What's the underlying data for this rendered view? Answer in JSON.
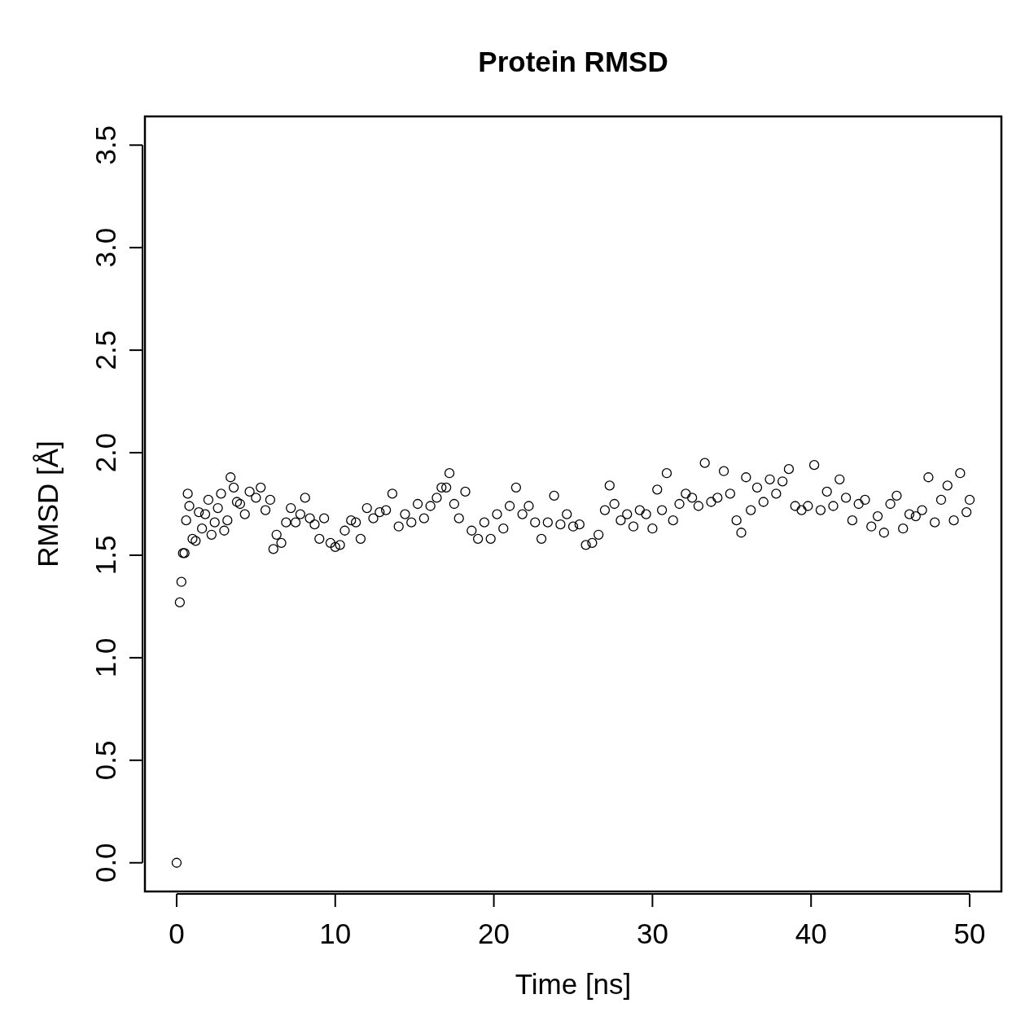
{
  "chart_data": {
    "type": "scatter",
    "title": "Protein RMSD",
    "xlabel": "Time [ns]",
    "ylabel": "RMSD [Å]",
    "marker": "circle",
    "xlim": [
      -2,
      52
    ],
    "ylim": [
      -0.14,
      3.64
    ],
    "xticks": [
      0,
      10,
      20,
      30,
      40,
      50
    ],
    "yticks": [
      {
        "value": 0,
        "label": "0.0"
      },
      0.5,
      {
        "value": 1,
        "label": "1.0"
      },
      1.5,
      {
        "value": 2,
        "label": "2.0"
      },
      2.5,
      {
        "value": 3,
        "label": "3.0"
      },
      3.5
    ],
    "series": [
      {
        "color": "#000000",
        "x": [
          0,
          0.2,
          0.3,
          0.4,
          0.5,
          0.6,
          0.7,
          0.8,
          1.0,
          1.2,
          1.4,
          1.6,
          1.8,
          2.0,
          2.2,
          2.4,
          2.6,
          2.8,
          3.0,
          3.2,
          3.4,
          3.6,
          3.8,
          4.0,
          4.3,
          4.6,
          5.0,
          5.3,
          5.6,
          5.9,
          6.1,
          6.3,
          6.6,
          6.9,
          7.2,
          7.5,
          7.8,
          8.1,
          8.4,
          8.7,
          9.0,
          9.3,
          9.7,
          10.0,
          10.3,
          10.6,
          11.0,
          11.3,
          11.6,
          12.0,
          12.4,
          12.8,
          13.2,
          13.6,
          14.0,
          14.4,
          14.8,
          15.2,
          15.6,
          16.0,
          16.4,
          16.7,
          17.0,
          17.2,
          17.5,
          17.8,
          18.2,
          18.6,
          19.0,
          19.4,
          19.8,
          20.2,
          20.6,
          21.0,
          21.4,
          21.8,
          22.2,
          22.6,
          23.0,
          23.4,
          23.8,
          24.2,
          24.6,
          25.0,
          25.4,
          25.8,
          26.2,
          26.6,
          27.0,
          27.3,
          27.6,
          28.0,
          28.4,
          28.8,
          29.2,
          29.6,
          30.0,
          30.3,
          30.6,
          30.9,
          31.3,
          31.7,
          32.1,
          32.5,
          32.9,
          33.3,
          33.7,
          34.1,
          34.5,
          34.9,
          35.3,
          35.6,
          35.9,
          36.2,
          36.6,
          37.0,
          37.4,
          37.8,
          38.2,
          38.6,
          39.0,
          39.4,
          39.8,
          40.2,
          40.6,
          41.0,
          41.4,
          41.8,
          42.2,
          42.6,
          43.0,
          43.4,
          43.8,
          44.2,
          44.6,
          45.0,
          45.4,
          45.8,
          46.2,
          46.6,
          47.0,
          47.4,
          47.8,
          48.2,
          48.6,
          49.0,
          49.4,
          49.8,
          50.0
        ],
        "values": [
          0,
          1.27,
          1.37,
          1.51,
          1.51,
          1.67,
          1.8,
          1.74,
          1.58,
          1.57,
          1.71,
          1.63,
          1.7,
          1.77,
          1.6,
          1.66,
          1.73,
          1.8,
          1.62,
          1.67,
          1.88,
          1.83,
          1.76,
          1.75,
          1.7,
          1.81,
          1.78,
          1.83,
          1.72,
          1.77,
          1.53,
          1.6,
          1.56,
          1.66,
          1.73,
          1.66,
          1.7,
          1.78,
          1.68,
          1.65,
          1.58,
          1.68,
          1.56,
          1.54,
          1.55,
          1.62,
          1.67,
          1.66,
          1.58,
          1.73,
          1.68,
          1.71,
          1.72,
          1.8,
          1.64,
          1.7,
          1.66,
          1.75,
          1.68,
          1.74,
          1.78,
          1.83,
          1.83,
          1.9,
          1.75,
          1.68,
          1.81,
          1.62,
          1.58,
          1.66,
          1.58,
          1.7,
          1.63,
          1.74,
          1.83,
          1.7,
          1.74,
          1.66,
          1.58,
          1.66,
          1.79,
          1.65,
          1.7,
          1.64,
          1.65,
          1.55,
          1.56,
          1.6,
          1.72,
          1.84,
          1.75,
          1.67,
          1.7,
          1.64,
          1.72,
          1.7,
          1.63,
          1.82,
          1.72,
          1.9,
          1.67,
          1.75,
          1.8,
          1.78,
          1.74,
          1.95,
          1.76,
          1.78,
          1.91,
          1.8,
          1.67,
          1.61,
          1.88,
          1.72,
          1.83,
          1.76,
          1.87,
          1.8,
          1.86,
          1.92,
          1.74,
          1.72,
          1.74,
          1.94,
          1.72,
          1.81,
          1.74,
          1.87,
          1.78,
          1.67,
          1.75,
          1.77,
          1.64,
          1.69,
          1.61,
          1.75,
          1.79,
          1.63,
          1.7,
          1.69,
          1.72,
          1.88,
          1.66,
          1.77,
          1.84,
          1.67,
          1.9,
          1.71,
          1.77
        ]
      }
    ]
  }
}
